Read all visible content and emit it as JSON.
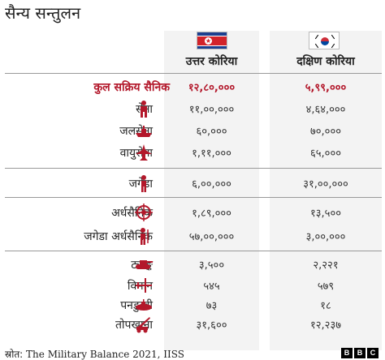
{
  "title": "सैन्य सन्तुलन",
  "columns": {
    "nk": "उत्तर कोरिया",
    "sk": "दक्षिण कोरिया"
  },
  "colors": {
    "accent": "#b3182b",
    "band": "#f3f3f3",
    "icon": "#b3182b"
  },
  "rows": [
    {
      "label": "कुल सक्रिय सैनिक",
      "nk": "१२,८०,०००",
      "sk": "५,९९,०००",
      "icon": ""
    },
    {
      "label": "सेना",
      "nk": "११,००,०००",
      "sk": "४,६४,०००",
      "icon": "soldier-icon"
    },
    {
      "label": "जलसेना",
      "nk": "६०,०००",
      "sk": "७०,०००",
      "icon": "warship-icon"
    },
    {
      "label": "वायुसेना",
      "nk": "१,११,०००",
      "sk": "६५,०००",
      "icon": "fighter-jet-icon"
    },
    {
      "label": "जगेडा",
      "nk": "६,००,०००",
      "sk": "३१,००,०००",
      "icon": "person-icon"
    },
    {
      "label": "अर्धसैनिक",
      "nk": "१,८९,०००",
      "sk": "१३,५००",
      "icon": "crosshair-icon"
    },
    {
      "label": "जगेडा अर्धसैनिक",
      "nk": "५७,००,०००",
      "sk": "३,००,०००",
      "icon": "soldier-rifle-icon"
    },
    {
      "label": "ट्याङ्क",
      "nk": "३,५००",
      "sk": "२,२२१",
      "icon": "tank-icon"
    },
    {
      "label": "विमान",
      "nk": "५४५",
      "sk": "५७९",
      "icon": "airplane-icon"
    },
    {
      "label": "पनडुब्बी",
      "nk": "७३",
      "sk": "१८",
      "icon": "submarine-icon"
    },
    {
      "label": "तोपखाना",
      "nk": "३१,६००",
      "sk": "१२,२३७",
      "icon": "artillery-icon"
    }
  ],
  "source": {
    "prefix": "स्रोत:",
    "text": " The Military Balance 2021, IISS"
  },
  "logo": [
    "B",
    "B",
    "C"
  ],
  "chart_data": {
    "type": "table",
    "title": "सैन्य सन्तुलन",
    "columns": [
      "उत्तर कोरिया",
      "दक्षिण कोरिया"
    ],
    "categories": [
      "कुल सक्रिय सैनिक",
      "सेना",
      "जलसेना",
      "वायुसेना",
      "जगेडा",
      "अर्धसैनिक",
      "जगेडा अर्धसैनिक",
      "ट्याङ्क",
      "विमान",
      "पनडुब्बी",
      "तोपखाना"
    ],
    "series": [
      {
        "name": "उत्तर कोरिया",
        "values": [
          1280000,
          1100000,
          60000,
          111000,
          600000,
          189000,
          5700000,
          3500,
          545,
          73,
          31600
        ]
      },
      {
        "name": "दक्षिण कोरिया",
        "values": [
          599000,
          464000,
          70000,
          65000,
          3100000,
          13500,
          300000,
          2221,
          579,
          18,
          12237
        ]
      }
    ]
  }
}
